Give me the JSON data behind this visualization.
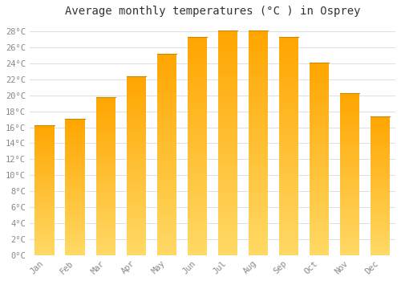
{
  "title": "Average monthly temperatures (°C ) in Osprey",
  "months": [
    "Jan",
    "Feb",
    "Mar",
    "Apr",
    "May",
    "Jun",
    "Jul",
    "Aug",
    "Sep",
    "Oct",
    "Nov",
    "Dec"
  ],
  "values": [
    16.3,
    17.1,
    19.8,
    22.4,
    25.2,
    27.3,
    28.1,
    28.1,
    27.3,
    24.1,
    20.3,
    17.4
  ],
  "bar_color_bottom": "#FFD966",
  "bar_color_top": "#FFA500",
  "bar_border_color": "#CC8800",
  "background_color": "#ffffff",
  "grid_color": "#e0e0e0",
  "ylim": [
    0,
    29
  ],
  "yticks": [
    0,
    2,
    4,
    6,
    8,
    10,
    12,
    14,
    16,
    18,
    20,
    22,
    24,
    26,
    28
  ],
  "title_fontsize": 10,
  "tick_fontsize": 7.5,
  "tick_color": "#888888",
  "title_color": "#333333",
  "font_family": "monospace",
  "bar_width": 0.65,
  "figsize": [
    5.0,
    3.5
  ],
  "dpi": 100
}
